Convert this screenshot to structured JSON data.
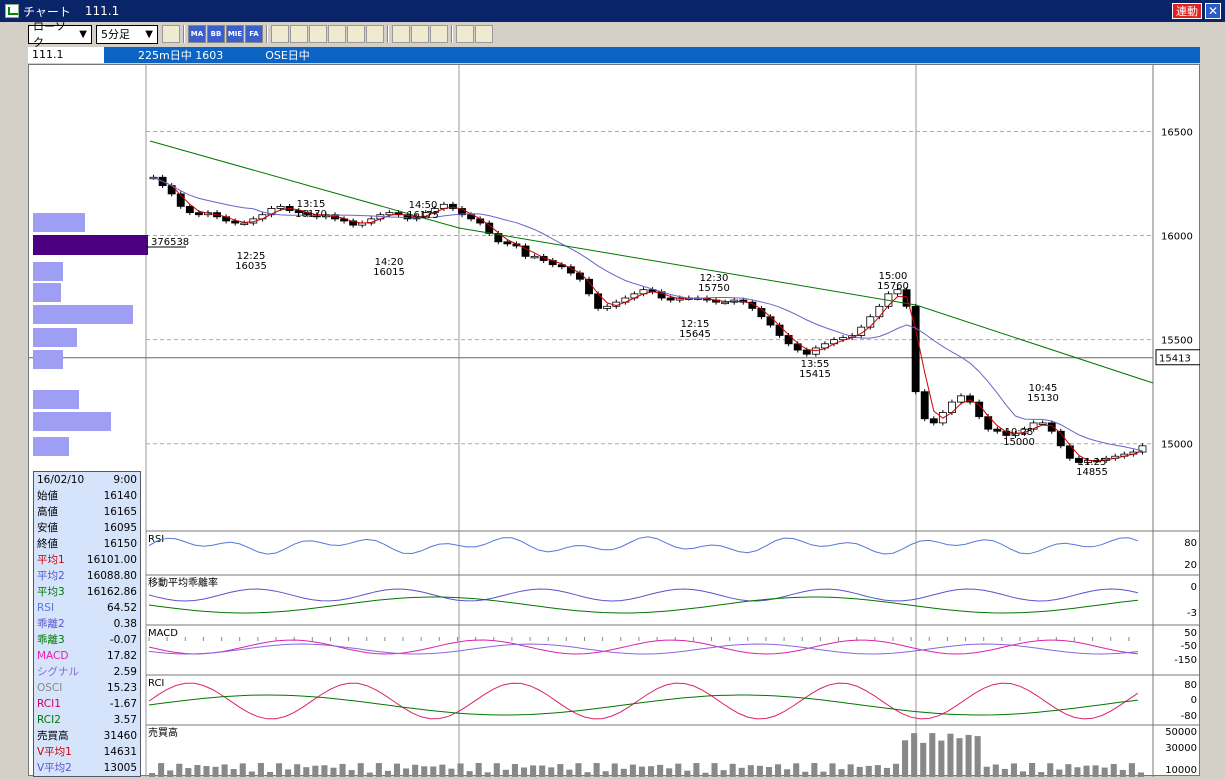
{
  "window": {
    "title": "チャート",
    "symbol": "111.1",
    "link_label": "連動",
    "close_label": "✕"
  },
  "toolbar": {
    "chart_type": "ローソク",
    "interval": "5分足",
    "buttons": [
      "settings",
      "MA",
      "BB",
      "MIE",
      "FA",
      "line",
      "candle",
      "dots",
      "zoom",
      "table",
      "ruler",
      "pen",
      "cursor",
      "eraser",
      "search",
      "fib"
    ]
  },
  "infobar": {
    "code": "111.1",
    "name": "225m日中 1603",
    "session": "OSE日中"
  },
  "price_axis": {
    "ticks": [
      "16500",
      "16000",
      "15500",
      "15000"
    ],
    "current": "15413"
  },
  "rsi_axis": [
    "80",
    "20"
  ],
  "dev_axis": [
    "0",
    "-3"
  ],
  "macd_axis": [
    "50",
    "-50",
    "-150"
  ],
  "rci_axis": [
    "80",
    "0",
    "-80"
  ],
  "vol_axis": [
    "50000",
    "30000",
    "10000"
  ],
  "panel_labels": {
    "rsi": "RSI",
    "dev": "移動平均乖離率",
    "macd": "MACD",
    "rci": "RCI",
    "vol": "売買高"
  },
  "volume_profile_label": "376538",
  "annotations": [
    {
      "t": "13:15",
      "v": "16170"
    },
    {
      "t": "12:25",
      "v": "16035"
    },
    {
      "t": "14:50",
      "v": "16175"
    },
    {
      "t": "14:20",
      "v": "16015"
    },
    {
      "t": "12:30",
      "v": "15750"
    },
    {
      "t": "12:15",
      "v": "15645"
    },
    {
      "t": "15:00",
      "v": "15760"
    },
    {
      "t": "13:55",
      "v": "15415"
    },
    {
      "t": "10:45",
      "v": "15130"
    },
    {
      "t": "10:25",
      "v": "15000"
    },
    {
      "t": "11:25",
      "v": "14855"
    }
  ],
  "data_panel": {
    "date": "16/02/10",
    "time": "9:00",
    "rows": [
      {
        "label": "始値",
        "value": "16140",
        "color": "#000000"
      },
      {
        "label": "高値",
        "value": "16165",
        "color": "#000000"
      },
      {
        "label": "安値",
        "value": "16095",
        "color": "#000000"
      },
      {
        "label": "終値",
        "value": "16150",
        "color": "#000000"
      },
      {
        "label": "平均1",
        "value": "16101.00",
        "color": "#cc0000"
      },
      {
        "label": "平均2",
        "value": "16088.80",
        "color": "#5555cc"
      },
      {
        "label": "平均3",
        "value": "16162.86",
        "color": "#007700"
      },
      {
        "label": "RSI",
        "value": "64.52",
        "color": "#5577dd"
      },
      {
        "label": "乖離2",
        "value": "0.38",
        "color": "#5555cc"
      },
      {
        "label": "乖離3",
        "value": "-0.07",
        "color": "#007700"
      },
      {
        "label": "MACD",
        "value": "17.82",
        "color": "#dd22aa"
      },
      {
        "label": "シグナル",
        "value": "2.59",
        "color": "#8866dd"
      },
      {
        "label": "OSCI",
        "value": "15.23",
        "color": "#888888"
      },
      {
        "label": "RCI1",
        "value": "-1.67",
        "color": "#cc0066"
      },
      {
        "label": "RCI2",
        "value": "3.57",
        "color": "#007700"
      },
      {
        "label": "売買高",
        "value": "31460",
        "color": "#000000"
      },
      {
        "label": "V平均1",
        "value": "14631",
        "color": "#cc0000"
      },
      {
        "label": "V平均2",
        "value": "13005",
        "color": "#5555cc"
      }
    ]
  },
  "chart_data": {
    "type": "candlestick",
    "price_range": [
      14600,
      16800
    ],
    "close_path": [
      16280,
      16240,
      16200,
      16140,
      16110,
      16100,
      16110,
      16090,
      16070,
      16060,
      16060,
      16080,
      16100,
      16130,
      16140,
      16120,
      16110,
      16100,
      16090,
      16100,
      16080,
      16070,
      16050,
      16060,
      16080,
      16100,
      16110,
      16100,
      16080,
      16090,
      16110,
      16130,
      16150,
      16130,
      16100,
      16080,
      16060,
      16010,
      15970,
      15960,
      15950,
      15900,
      15900,
      15880,
      15860,
      15850,
      15820,
      15790,
      15720,
      15650,
      15660,
      15680,
      15700,
      15720,
      15740,
      15730,
      15700,
      15690,
      15700,
      15700,
      15700,
      15690,
      15680,
      15680,
      15690,
      15680,
      15650,
      15610,
      15570,
      15520,
      15480,
      15450,
      15430,
      15460,
      15480,
      15500,
      15510,
      15520,
      15560,
      15610,
      15660,
      15720,
      15740,
      15660,
      15250,
      15120,
      15100,
      15150,
      15200,
      15230,
      15200,
      15130,
      15070,
      15060,
      15040,
      15050,
      15070,
      15100,
      15100,
      15060,
      14990,
      14930,
      14910,
      14920,
      14920,
      14930,
      14940,
      14950,
      14960,
      14990
    ]
  }
}
